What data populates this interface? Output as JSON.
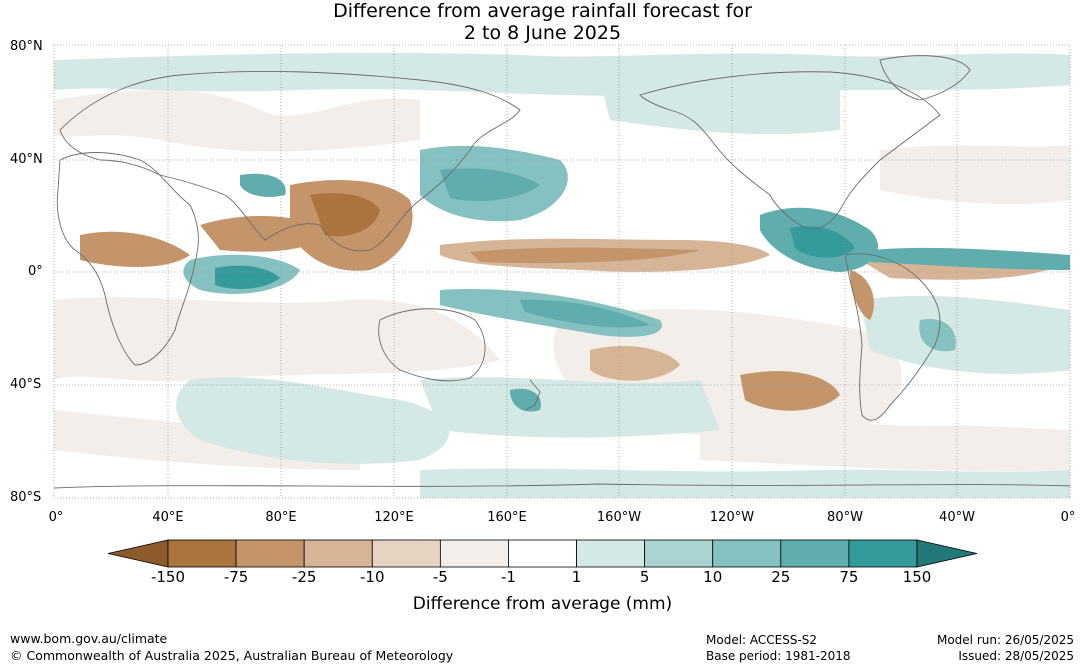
{
  "title_line1": "Difference from average rainfall forecast for",
  "title_line2": "2 to 8 June 2025",
  "map": {
    "lat_labels": [
      "80°N",
      "40°N",
      "0°",
      "40°S",
      "80°S"
    ],
    "lon_labels": [
      "0°",
      "40°E",
      "80°E",
      "120°E",
      "160°E",
      "160°W",
      "120°W",
      "80°W",
      "40°W",
      "0°"
    ]
  },
  "colorbar": {
    "ticks": [
      "-150",
      "-75",
      "-25",
      "-10",
      "-5",
      "-1",
      "1",
      "5",
      "10",
      "25",
      "75",
      "150"
    ],
    "colors": [
      "#8c5a2b",
      "#ab743f",
      "#c4956a",
      "#d6b596",
      "#e6d3c1",
      "#f3eee9",
      "#ffffff",
      "#d4e8e6",
      "#aad4d2",
      "#84c1c0",
      "#5fadad",
      "#359b9a",
      "#237878"
    ],
    "title": "Difference from average (mm)"
  },
  "footer": {
    "url": "www.bom.gov.au/climate",
    "copyright": "© Commonwealth of Australia 2025, Australian Bureau of Meteorology",
    "model": "Model: ACCESS-S2",
    "base_period": "Base period: 1981-2018",
    "model_run": "Model run: 26/05/2025",
    "issued": "Issued: 28/05/2025"
  }
}
